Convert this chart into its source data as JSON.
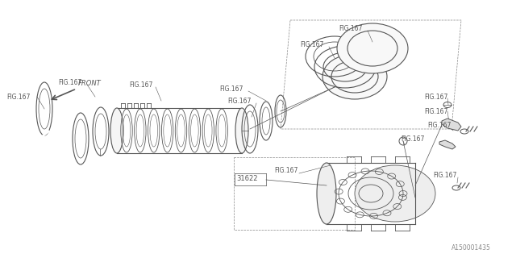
{
  "bg_color": "#ffffff",
  "line_color": "#555555",
  "text_color": "#555555",
  "fig_label": "FIG.167",
  "part_label": "31622",
  "watermark": "A150001435",
  "front_label": "FRONT"
}
